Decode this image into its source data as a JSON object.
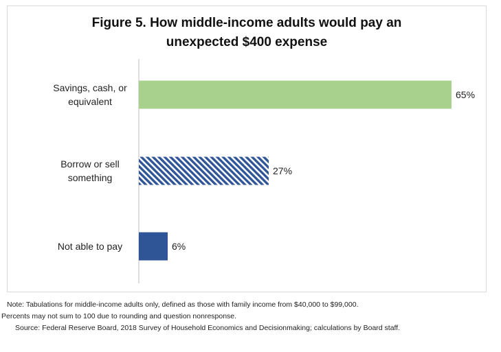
{
  "chart_data": {
    "type": "bar",
    "orientation": "horizontal",
    "title": "Figure 5.  How middle-income adults would pay an unexpected $400 expense",
    "title_lines": [
      "Figure 5.  How middle-income adults would pay an",
      "unexpected $400 expense"
    ],
    "categories": [
      [
        "Savings, cash, or",
        "equivalent"
      ],
      [
        "Borrow or sell",
        "something"
      ],
      [
        "Not able to pay"
      ]
    ],
    "values": [
      65,
      27,
      6
    ],
    "data_labels": [
      "65%",
      "27%",
      "6%"
    ],
    "xlim": [
      0,
      70
    ],
    "grid": false,
    "legend": "none",
    "colors": [
      "#a9d18e",
      "#2f5597",
      "#2f5597"
    ],
    "patterns": [
      "solid",
      "diagonal-stripes",
      "solid"
    ]
  },
  "notes": {
    "line1": "Note:   Tabulations for middle-income adults only, defined as those with family income from $40,000 to $99,000.",
    "line2": "Percents may not sum to 100 due to rounding and question nonresponse.",
    "line3": "Source:  Federal Reserve Board, 2018 Survey of Household Economics and Decisionmaking; calculations by Board staff."
  }
}
